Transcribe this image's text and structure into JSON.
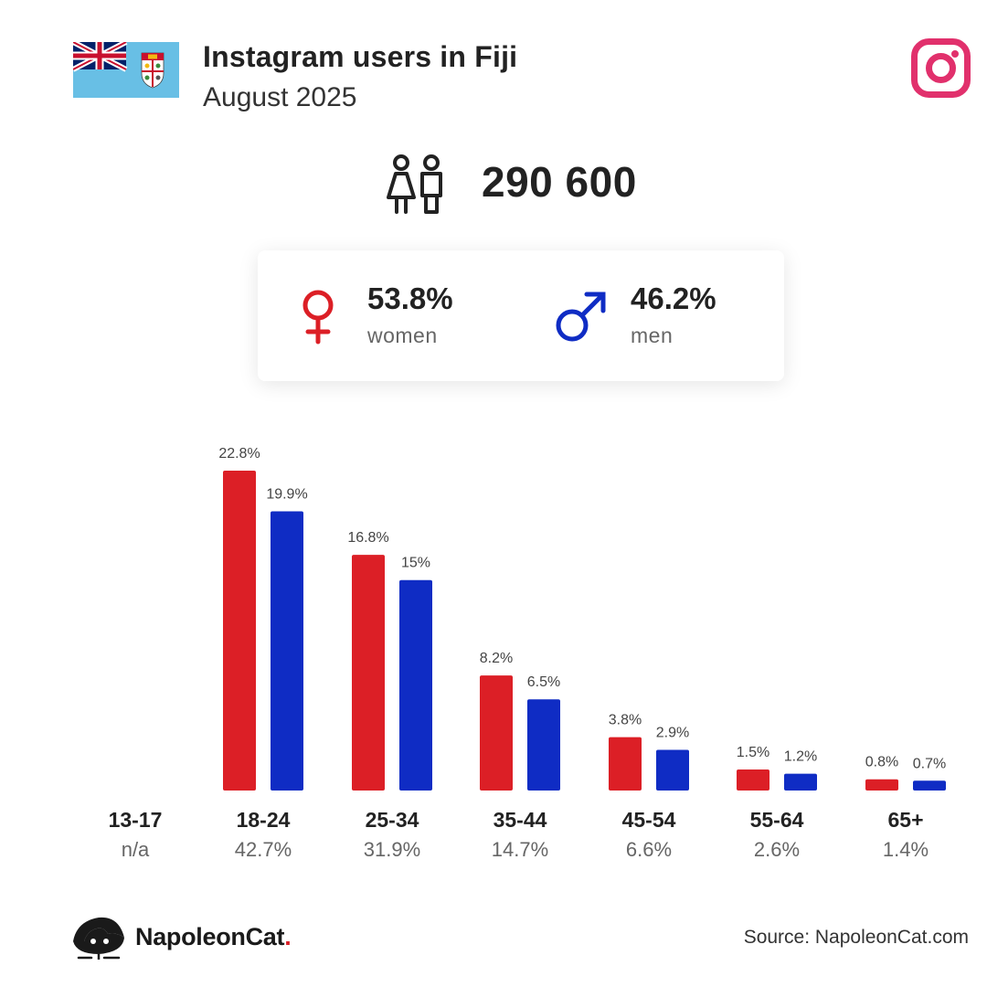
{
  "header": {
    "title": "Instagram users in Fiji",
    "subtitle": "August 2025"
  },
  "summary": {
    "total_users": "290 600",
    "women_pct": "53.8%",
    "women_label": "women",
    "men_pct": "46.2%",
    "men_label": "men"
  },
  "colors": {
    "women": "#dc1f26",
    "men": "#0f2cc4",
    "instagram": "#e1306c",
    "fiji_flag_blue": "#68bfe5"
  },
  "icons": {
    "flag": "fiji-flag-icon",
    "instagram": "instagram-logo-icon",
    "users": "people-icon",
    "female": "female-symbol-icon",
    "male": "male-symbol-icon",
    "brand": "napoleoncat-logo-icon"
  },
  "chart_data": {
    "type": "bar",
    "categories": [
      "13-17",
      "18-24",
      "25-34",
      "35-44",
      "45-54",
      "55-64",
      "65+"
    ],
    "category_totals": [
      "n/a",
      "42.7%",
      "31.9%",
      "14.7%",
      "6.6%",
      "2.6%",
      "1.4%"
    ],
    "series": [
      {
        "name": "women",
        "values": [
          null,
          22.8,
          16.8,
          8.2,
          3.8,
          1.5,
          0.8
        ],
        "labels": [
          "",
          "22.8%",
          "16.8%",
          "8.2%",
          "3.8%",
          "1.5%",
          "0.8%"
        ]
      },
      {
        "name": "men",
        "values": [
          null,
          19.9,
          15,
          6.5,
          2.9,
          1.2,
          0.7
        ],
        "labels": [
          "",
          "19.9%",
          "15%",
          "6.5%",
          "2.9%",
          "1.2%",
          "0.7%"
        ]
      }
    ],
    "ylim": [
      0,
      22.8
    ],
    "grid": false
  },
  "footer": {
    "brand": "NapoleonCat",
    "brand_dot": ".",
    "source": "Source: NapoleonCat.com"
  }
}
